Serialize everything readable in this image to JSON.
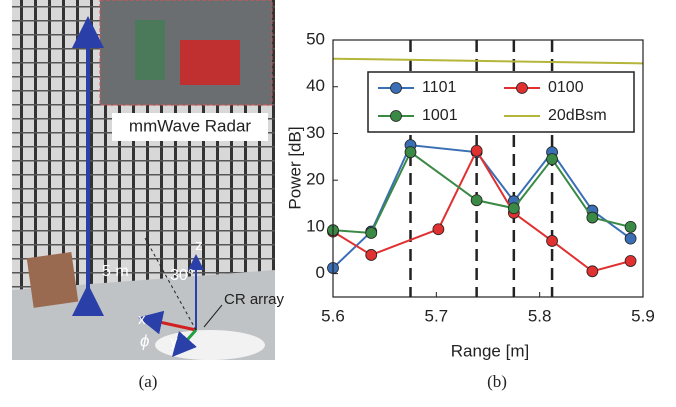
{
  "chart_data": {
    "type": "line",
    "xlabel": "Range [m]",
    "ylabel": "Power [dB]",
    "xlim": [
      5.6,
      5.9
    ],
    "xticks": [
      5.6,
      5.7,
      5.8,
      5.9
    ],
    "ylim": [
      -5,
      50
    ],
    "yticks": [
      0,
      10,
      20,
      30,
      40,
      50
    ],
    "vlines": [
      5.675,
      5.739,
      5.775,
      5.812
    ],
    "legend": "upper",
    "series": [
      {
        "name": "1101",
        "color": "#3a6fb5",
        "marker": true,
        "x": [
          5.6,
          5.637,
          5.675,
          5.739,
          5.775,
          5.812,
          5.851,
          5.888
        ],
        "values": [
          1.2,
          9,
          27.5,
          26,
          15.5,
          26,
          13.5,
          7.5
        ]
      },
      {
        "name": "0100",
        "color": "#e03030",
        "marker": true,
        "x": [
          5.6,
          5.637,
          5.702,
          5.739,
          5.775,
          5.812,
          5.851,
          5.888
        ],
        "values": [
          9,
          4,
          9.5,
          26.3,
          13,
          7,
          0.5,
          2.7
        ]
      },
      {
        "name": "1001",
        "color": "#3a8a45",
        "marker": true,
        "x": [
          5.6,
          5.637,
          5.675,
          5.739,
          5.775,
          5.812,
          5.851,
          5.888
        ],
        "values": [
          9.3,
          8.7,
          26,
          15.7,
          14,
          24.5,
          12,
          10
        ]
      },
      {
        "name": "20dBsm",
        "color": "#b5b53a",
        "marker": false,
        "x": [
          5.6,
          5.9
        ],
        "values": [
          46,
          45
        ]
      }
    ]
  },
  "photo": {
    "inset_label": "mmWave Radar",
    "height": "5 m",
    "z": "z",
    "angle": "30°",
    "array": "CR array",
    "x": "x",
    "y": "y",
    "phi": "ϕ"
  },
  "captions": {
    "a": "(a)",
    "b": "(b)"
  }
}
